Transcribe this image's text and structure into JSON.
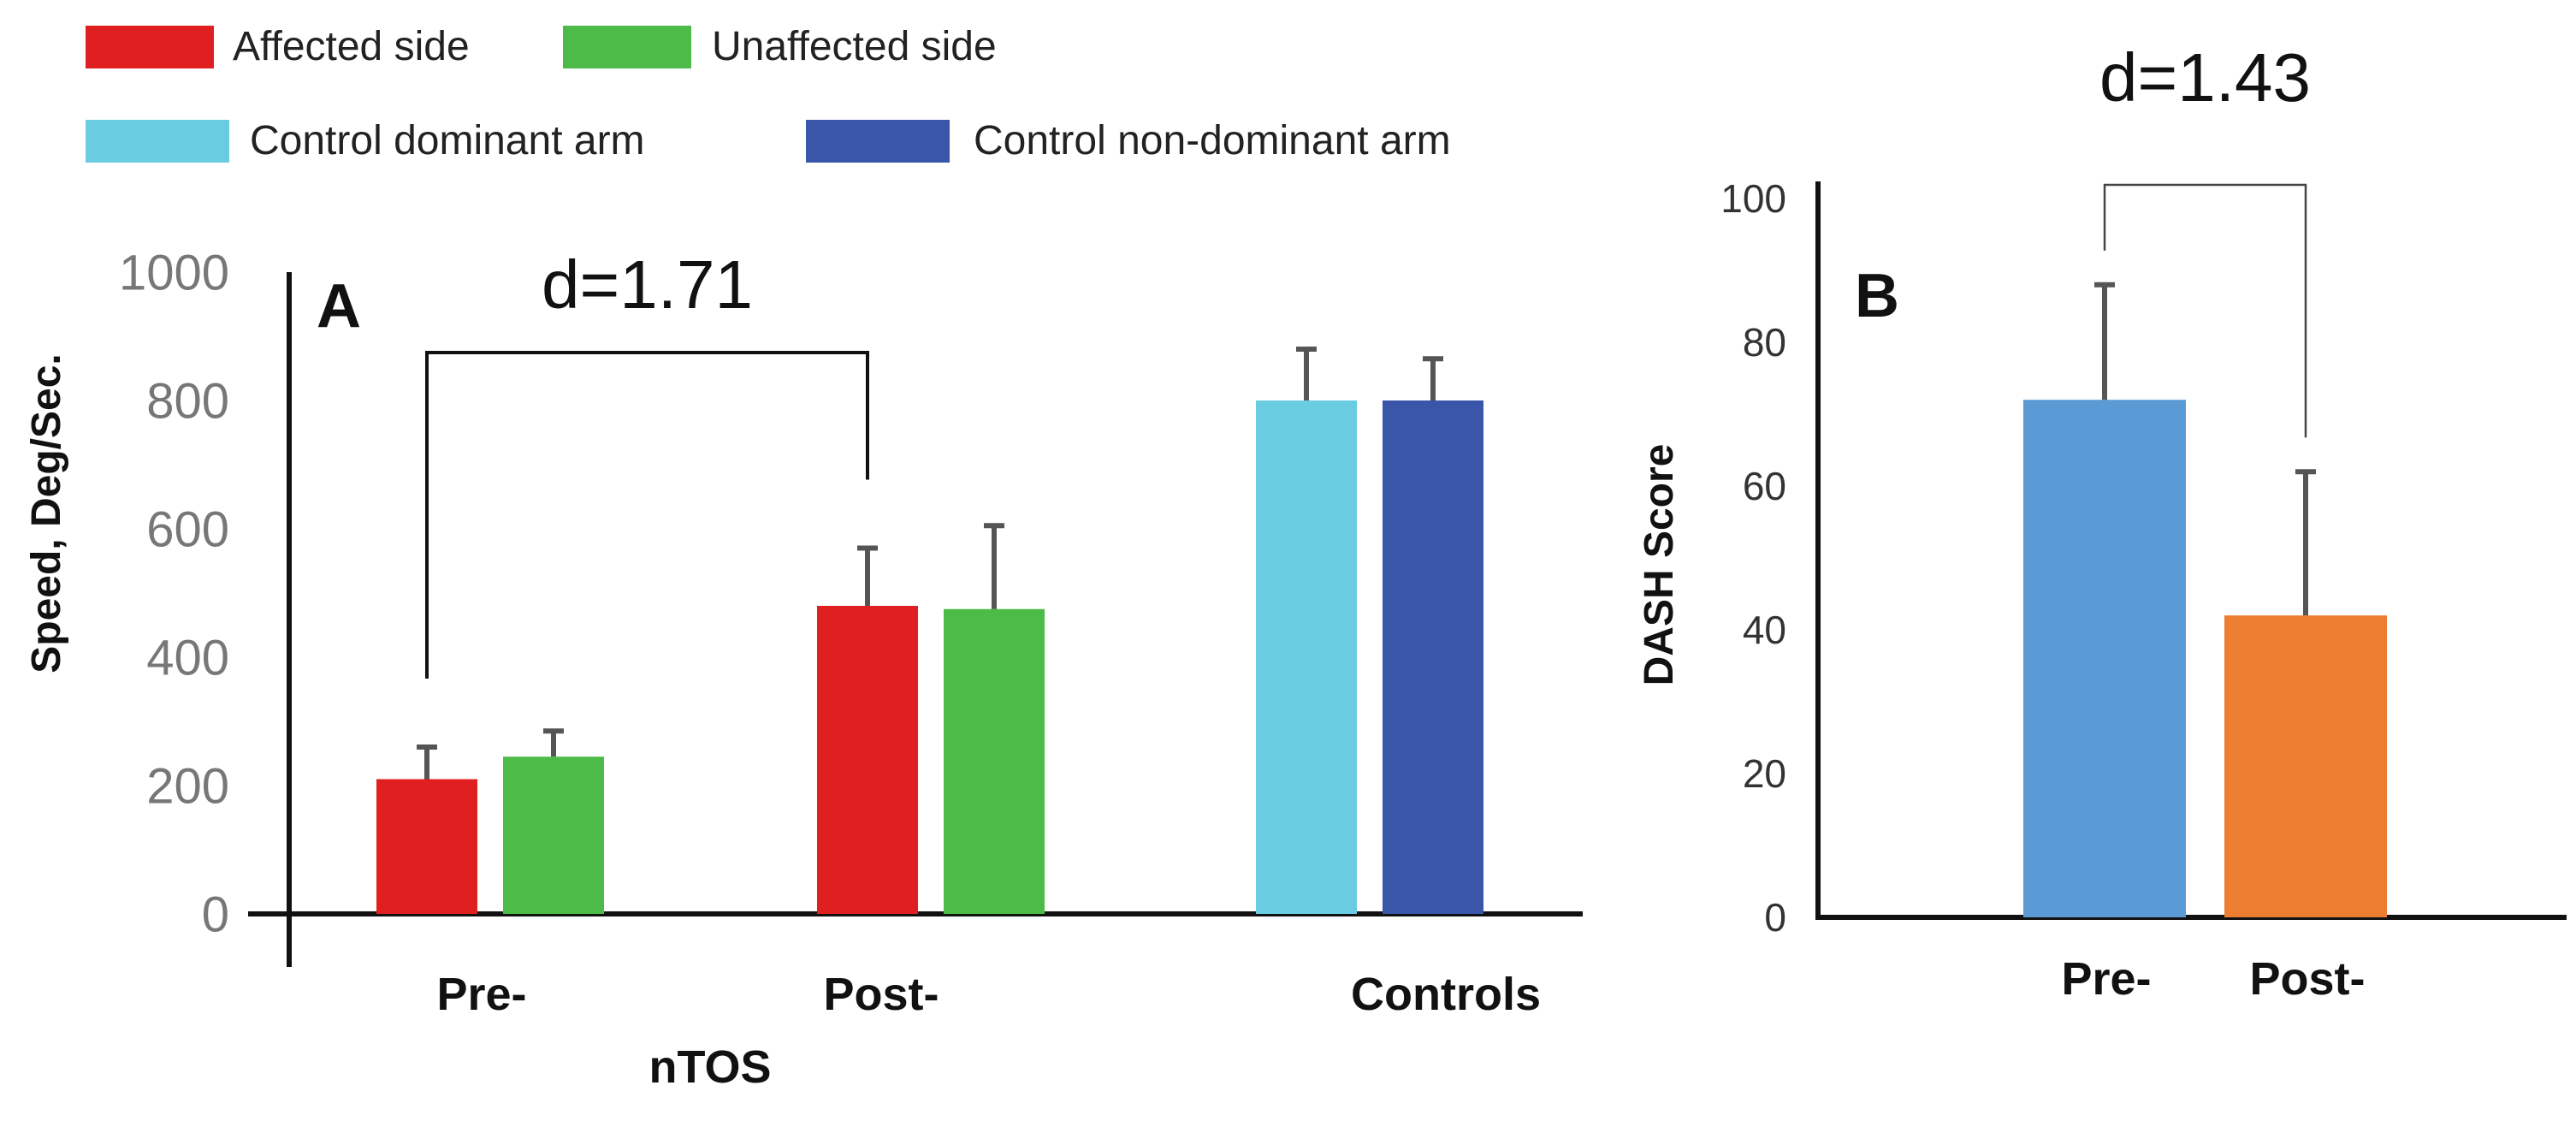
{
  "legend": {
    "items": [
      {
        "label": "Affected side",
        "color": "#e02020"
      },
      {
        "label": "Unaffected side",
        "color": "#4cbb47"
      },
      {
        "label": "Control dominant arm",
        "color": "#69cce0"
      },
      {
        "label": "Control non-dominant arm",
        "color": "#3a56a9"
      }
    ]
  },
  "chart_data": [
    {
      "type": "bar",
      "panel_label": "A",
      "ylabel": "Speed, Deg/Sec.",
      "ylim": [
        0,
        1000
      ],
      "yticks": [
        "0",
        "200",
        "400",
        "600",
        "800",
        "1000"
      ],
      "group_title": "nTOS",
      "categories": [
        "Pre-",
        "Post-",
        "Controls"
      ],
      "bars": [
        {
          "category": "Pre-",
          "series": "Affected side",
          "value": 210,
          "error": 50,
          "color": "#e02020"
        },
        {
          "category": "Pre-",
          "series": "Unaffected side",
          "value": 245,
          "error": 40,
          "color": "#4cbb47"
        },
        {
          "category": "Post-",
          "series": "Affected side",
          "value": 480,
          "error": 90,
          "color": "#e02020"
        },
        {
          "category": "Post-",
          "series": "Unaffected side",
          "value": 475,
          "error": 130,
          "color": "#4cbb47"
        },
        {
          "category": "Controls",
          "series": "Control dominant arm",
          "value": 800,
          "error": 80,
          "color": "#69cce0"
        },
        {
          "category": "Controls",
          "series": "Control non-dominant arm",
          "value": 800,
          "error": 65,
          "color": "#3a56a9"
        }
      ],
      "annotation": {
        "text": "d=1.71",
        "from_bar": 0,
        "to_bar": 2
      }
    },
    {
      "type": "bar",
      "panel_label": "B",
      "ylabel": "DASH Score",
      "ylim": [
        0,
        100
      ],
      "yticks": [
        "0",
        "20",
        "40",
        "60",
        "80",
        "100"
      ],
      "categories": [
        "Pre-",
        "Post-"
      ],
      "bars": [
        {
          "category": "Pre-",
          "value": 72,
          "error": 16,
          "color": "#5b9bd5"
        },
        {
          "category": "Post-",
          "value": 42,
          "error": 20,
          "color": "#ed7d31"
        }
      ],
      "annotation": {
        "text": "d=1.43",
        "from_bar": 0,
        "to_bar": 1
      }
    }
  ]
}
